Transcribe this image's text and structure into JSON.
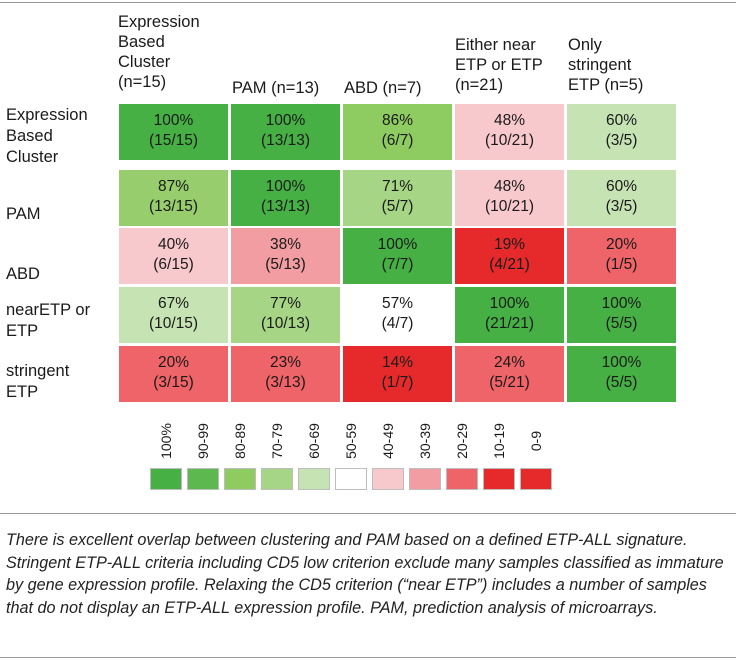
{
  "columns": [
    {
      "label": "Expression Based Cluster (n=15)",
      "lines": [
        "Expression",
        "Based",
        "Cluster",
        "(n=15)"
      ]
    },
    {
      "label": "PAM (n=13)",
      "lines": [
        "PAM (n=13)"
      ]
    },
    {
      "label": "ABD (n=7)",
      "lines": [
        "ABD (n=7)"
      ]
    },
    {
      "label": "Either near ETP or ETP (n=21)",
      "lines": [
        "Either near",
        "ETP or ETP",
        "(n=21)"
      ]
    },
    {
      "label": "Only stringent ETP (n=5)",
      "lines": [
        "Only",
        "stringent",
        "ETP (n=5)"
      ]
    }
  ],
  "rows": [
    {
      "label": "Expression Based Cluster",
      "lines": [
        "Expression",
        "Based",
        "Cluster"
      ],
      "cells": [
        {
          "pct": "100%",
          "frac": "(15/15)",
          "color": "#46b045"
        },
        {
          "pct": "100%",
          "frac": "(13/13)",
          "color": "#46b045"
        },
        {
          "pct": "86%",
          "frac": "(6/7)",
          "color": "#8ecb61"
        },
        {
          "pct": "48%",
          "frac": "(10/21)",
          "color": "#f8c9cc"
        },
        {
          "pct": "60%",
          "frac": "(3/5)",
          "color": "#c6e3b4"
        }
      ]
    },
    {
      "label": "PAM",
      "lines": [
        "PAM"
      ],
      "cells": [
        {
          "pct": "87%",
          "frac": "(13/15)",
          "color": "#97cd6c"
        },
        {
          "pct": "100%",
          "frac": "(13/13)",
          "color": "#46b045"
        },
        {
          "pct": "71%",
          "frac": "(5/7)",
          "color": "#a5d585"
        },
        {
          "pct": "48%",
          "frac": "(10/21)",
          "color": "#f8c9cc"
        },
        {
          "pct": "60%",
          "frac": "(3/5)",
          "color": "#c6e3b4"
        }
      ]
    },
    {
      "label": "ABD",
      "lines": [
        "ABD"
      ],
      "cells": [
        {
          "pct": "40%",
          "frac": "(6/15)",
          "color": "#f8c9cc"
        },
        {
          "pct": "38%",
          "frac": "(5/13)",
          "color": "#f19da1"
        },
        {
          "pct": "100%",
          "frac": "(7/7)",
          "color": "#46b045"
        },
        {
          "pct": "19%",
          "frac": "(4/21)",
          "color": "#e62a2c"
        },
        {
          "pct": "20%",
          "frac": "(1/5)",
          "color": "#ef6468"
        }
      ]
    },
    {
      "label": "nearETP or ETP",
      "lines": [
        "nearETP or",
        "ETP"
      ],
      "cells": [
        {
          "pct": "67%",
          "frac": "(10/15)",
          "color": "#c6e3b4"
        },
        {
          "pct": "77%",
          "frac": "(10/13)",
          "color": "#a5d585"
        },
        {
          "pct": "57%",
          "frac": "(4/7)",
          "color": "#ffffff"
        },
        {
          "pct": "100%",
          "frac": "(21/21)",
          "color": "#46b045"
        },
        {
          "pct": "100%",
          "frac": "(5/5)",
          "color": "#46b045"
        }
      ]
    },
    {
      "label": "stringent ETP",
      "lines": [
        "stringent",
        "ETP"
      ],
      "cells": [
        {
          "pct": "20%",
          "frac": "(3/15)",
          "color": "#ef6468"
        },
        {
          "pct": "23%",
          "frac": "(3/13)",
          "color": "#ef6468"
        },
        {
          "pct": "14%",
          "frac": "(1/7)",
          "color": "#e62a2c"
        },
        {
          "pct": "24%",
          "frac": "(5/21)",
          "color": "#ef6468"
        },
        {
          "pct": "100%",
          "frac": "(5/5)",
          "color": "#46b045"
        }
      ]
    }
  ],
  "legend": [
    {
      "label": "100%",
      "color": "#46b045"
    },
    {
      "label": "90-99",
      "color": "#5db94f"
    },
    {
      "label": "80-89",
      "color": "#8ecb61"
    },
    {
      "label": "70-79",
      "color": "#a5d585"
    },
    {
      "label": "60-69",
      "color": "#c6e3b4"
    },
    {
      "label": "50-59",
      "color": "#ffffff"
    },
    {
      "label": "40-49",
      "color": "#f8c9cc"
    },
    {
      "label": "30-39",
      "color": "#f19da1"
    },
    {
      "label": "20-29",
      "color": "#ef6468"
    },
    {
      "label": "10-19",
      "color": "#e62a2c"
    },
    {
      "label": "0-9",
      "color": "#e62a2c"
    }
  ],
  "caption": "There is excellent overlap between clustering and PAM based on a defined ETP-ALL signature. Stringent ETP-ALL criteria including CD5 low criterion exclude many samples classified as immature by gene expression profile. Relaxing the CD5 criterion (“near ETP”) includes a number of samples that do not display an ETP-ALL expression profile. PAM, prediction analysis of microarrays."
}
